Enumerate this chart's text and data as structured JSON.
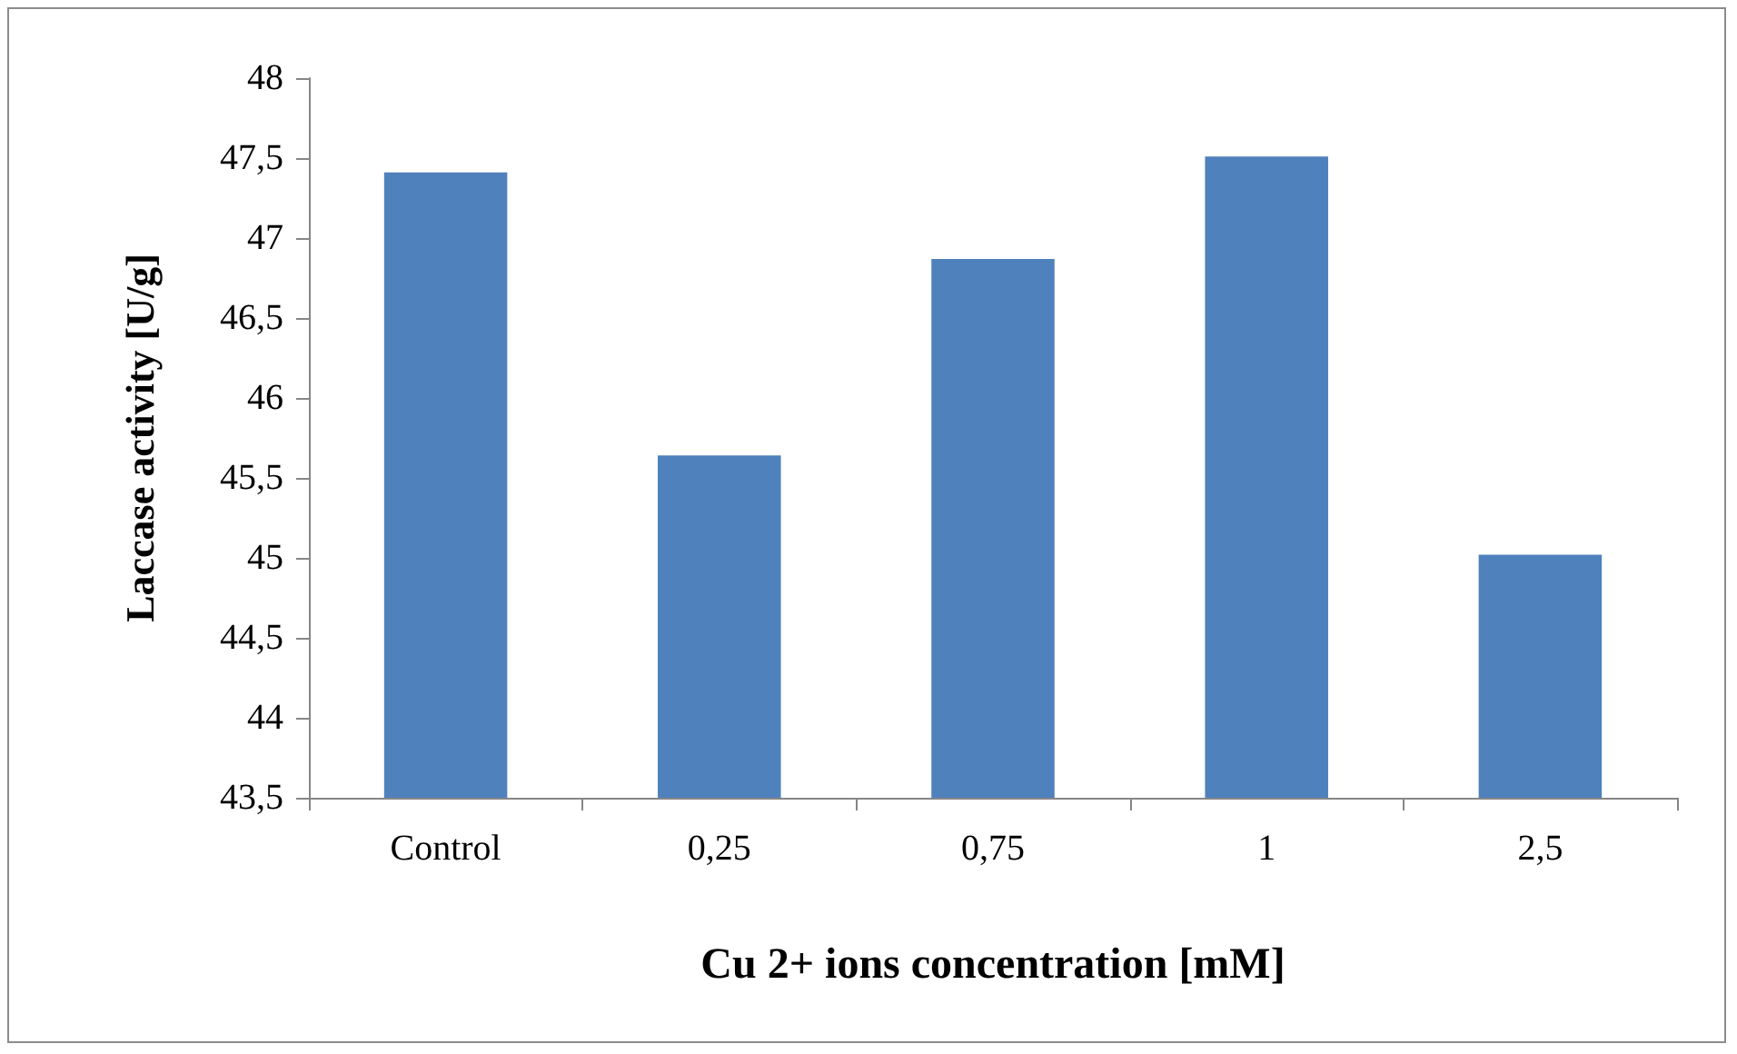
{
  "chart_data": {
    "type": "bar",
    "xlabel": "Cu 2+ ions concentration [mM]",
    "ylabel": "Laccase activity [U/g]",
    "categories": [
      "Control",
      "0,25",
      "0,75",
      "1",
      "2,5"
    ],
    "values": [
      47.41,
      45.64,
      46.87,
      47.51,
      45.02
    ],
    "color": "#4f81bd",
    "ylim": [
      43.5,
      48
    ],
    "yticks": [
      {
        "value": 43.5,
        "label": "43,5"
      },
      {
        "value": 44,
        "label": "44"
      },
      {
        "value": 44.5,
        "label": "44,5"
      },
      {
        "value": 45,
        "label": "45"
      },
      {
        "value": 45.5,
        "label": "45,5"
      },
      {
        "value": 46,
        "label": "46"
      },
      {
        "value": 46.5,
        "label": "46,5"
      },
      {
        "value": 47,
        "label": "47"
      },
      {
        "value": 47.5,
        "label": "47,5"
      },
      {
        "value": 48,
        "label": "48"
      }
    ],
    "grid": false
  }
}
